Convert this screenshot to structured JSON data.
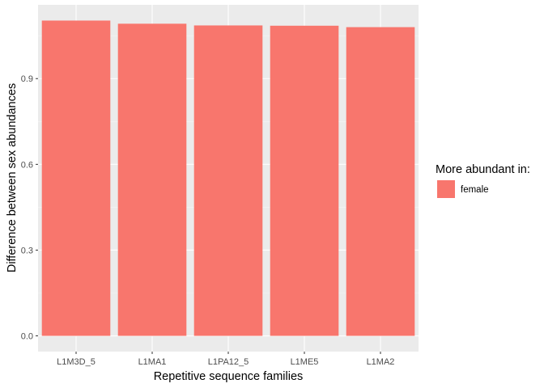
{
  "colors": {
    "panel_bg": "#ebebeb",
    "grid_major": "#ffffff",
    "grid_minor": "#f5f5f5",
    "bar_fill": "#f8766d",
    "tick_text": "#4d4d4d",
    "axis_title": "#000000"
  },
  "legend": {
    "title": "More abundant in:",
    "items": [
      {
        "label": "female",
        "color": "#f8766d"
      }
    ]
  },
  "chart_data": {
    "type": "bar",
    "title": "",
    "xlabel": "Repetitive sequence families",
    "ylabel": "Difference between sex abundances",
    "categories": [
      "L1M3D_5",
      "L1MA1",
      "L1PA12_5",
      "L1ME5",
      "L1MA2"
    ],
    "series": [
      {
        "name": "female",
        "values": [
          1.103,
          1.092,
          1.086,
          1.085,
          1.08
        ]
      }
    ],
    "ylim": [
      -0.055,
      1.158
    ],
    "yticks": [
      0.0,
      0.3,
      0.6,
      0.9
    ],
    "ytick_labels": [
      "0.0",
      "0.3",
      "0.6",
      "0.9"
    ],
    "grid": true,
    "legend_position": "right"
  }
}
